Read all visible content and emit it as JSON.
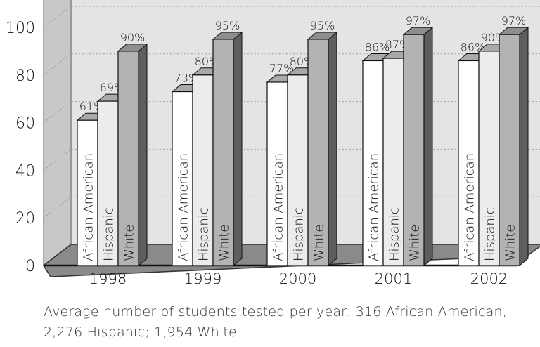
{
  "chart_data": {
    "type": "bar",
    "categories": [
      "1998",
      "1999",
      "2000",
      "2001",
      "2002"
    ],
    "series": [
      {
        "name": "African American",
        "values": [
          61,
          73,
          77,
          86,
          86
        ],
        "color": "#ffffff"
      },
      {
        "name": "Hispanic",
        "values": [
          69,
          80,
          80,
          87,
          90
        ],
        "color": "#ececec"
      },
      {
        "name": "White",
        "values": [
          90,
          95,
          95,
          97,
          97
        ],
        "color": "#b3b3b3"
      }
    ],
    "value_labels": [
      [
        "61%",
        "73%",
        "77%",
        "86%",
        "86%"
      ],
      [
        "69%",
        "80%",
        "80%",
        "87%",
        "90%"
      ],
      [
        "90%",
        "95%",
        "95%",
        "97%",
        "97%"
      ]
    ],
    "yticks": [
      "0",
      "20",
      "40",
      "60",
      "80",
      "100"
    ],
    "ylim": [
      0,
      100
    ],
    "grid": true,
    "style": "3d",
    "note": "Average number of students tested per year: 316 African American; 2,276 Hispanic; 1,954 White"
  }
}
